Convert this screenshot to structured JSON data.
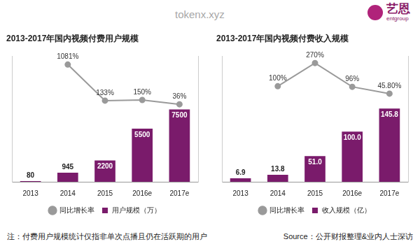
{
  "header": {
    "logo": "艺恩",
    "logo_sub": "entgroup"
  },
  "watermark": "tokenx.xyz",
  "chart_data": [
    {
      "type": "bar",
      "title": "2013-2017年国内视频付费用户规模",
      "categories": [
        "2013",
        "2014",
        "2015",
        "2016e",
        "2017e"
      ],
      "series": [
        {
          "name": "用户规模（万）",
          "type": "bar",
          "color": "#7a1b6b",
          "values": [
            80,
            945,
            2200,
            5500,
            7500
          ]
        },
        {
          "name": "同比增长率",
          "type": "line",
          "axis": "y2",
          "color": "#9a9a9a",
          "marker": "circle",
          "values": [
            null,
            1081,
            133,
            150,
            36
          ],
          "value_labels": [
            null,
            "1081%",
            "133%",
            "150%",
            "36%"
          ]
        }
      ],
      "ylim": [
        0,
        13000
      ],
      "y2lim": [
        -2000,
        1300
      ],
      "grid": false,
      "legend": "bottom",
      "data_labels": true,
      "tick_labels": "x"
    },
    {
      "type": "bar",
      "title": "2013-2017年国内视频付费收入规模",
      "categories": [
        "2013",
        "2014",
        "2015",
        "2016e",
        "2017e"
      ],
      "series": [
        {
          "name": "收入规模（亿）",
          "type": "bar",
          "color": "#7a1b6b",
          "values": [
            6.9,
            13.8,
            51.0,
            100.0,
            145.8
          ],
          "value_labels": [
            "6.9",
            "13.8",
            "51.0",
            "100.0",
            "145.8"
          ]
        },
        {
          "name": "同比增长率",
          "type": "line",
          "axis": "y2",
          "color": "#9a9a9a",
          "marker": "circle",
          "values": [
            null,
            100,
            270,
            96,
            45.8
          ],
          "value_labels": [
            null,
            "100%",
            "270%",
            "96%",
            "45.80%"
          ]
        }
      ],
      "ylim": [
        0,
        250
      ],
      "y2lim": [
        -600,
        320
      ],
      "grid": false,
      "legend": "bottom",
      "data_labels": true,
      "tick_labels": "x"
    }
  ],
  "footer": {
    "note": "注：付费用户规模统计仅指非单次点播且仍在活跃期的用户",
    "source": "Source：公开财报整理&业内人士深访"
  }
}
